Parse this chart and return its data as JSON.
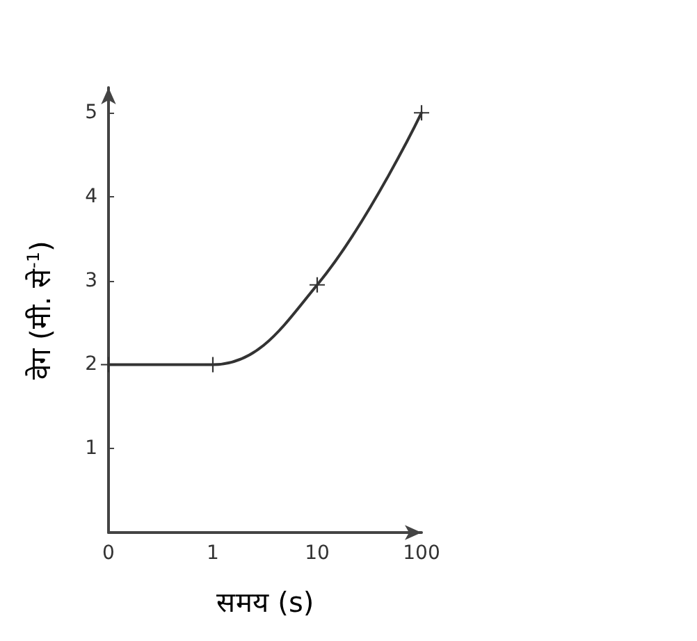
{
  "chart_data": {
    "type": "line",
    "xlabel": "समय (s)",
    "ylabel": "वेग (मी. से$^{-1}$)",
    "categories": [
      "0",
      "1",
      "10",
      "100"
    ],
    "series": [
      {
        "color": "#333333",
        "values": [
          2,
          2,
          2.95,
          5
        ]
      }
    ],
    "ylim": [
      0,
      5.3
    ],
    "yticks": [
      1,
      2,
      3,
      4,
      5
    ],
    "grid": false,
    "marker": "cross",
    "line_style": "solid"
  }
}
